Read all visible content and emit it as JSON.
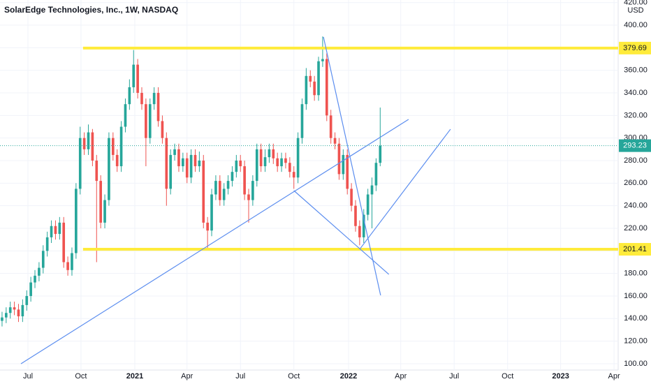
{
  "chart_data": {
    "type": "candlestick",
    "title": "SolarEdge Technologies, Inc., 1W, NASDAQ",
    "currency": "USD",
    "up_color": "#26a69a",
    "down_color": "#ef5350",
    "level_color": "#ffeb3b",
    "trendline_color": "#5b8def",
    "grid": true,
    "xlim": [
      0,
      150.4
    ],
    "xticks": [
      {
        "value": 6.8,
        "label": "Jul"
      },
      {
        "value": 19.7,
        "label": "Oct"
      },
      {
        "value": 32.8,
        "label": "2021"
      },
      {
        "value": 45.5,
        "label": "Apr"
      },
      {
        "value": 58.5,
        "label": "Jul"
      },
      {
        "value": 71.5,
        "label": "Oct"
      },
      {
        "value": 84.8,
        "label": "2022"
      },
      {
        "value": 97.5,
        "label": "Apr"
      },
      {
        "value": 110.5,
        "label": "Jul"
      },
      {
        "value": 123.5,
        "label": "Oct"
      },
      {
        "value": 136.4,
        "label": "2023"
      },
      {
        "value": 149.4,
        "label": "Apr"
      }
    ],
    "ylim": [
      94.4,
      422.3
    ],
    "yticks": [
      {
        "value": 100,
        "label": "100.00"
      },
      {
        "value": 120,
        "label": "120.00"
      },
      {
        "value": 140,
        "label": "140.00"
      },
      {
        "value": 160,
        "label": "160.00"
      },
      {
        "value": 180,
        "label": "180.00"
      },
      {
        "value": 200,
        "label": "200.00"
      },
      {
        "value": 220,
        "label": "220.00"
      },
      {
        "value": 240,
        "label": "240.00"
      },
      {
        "value": 260,
        "label": "260.00"
      },
      {
        "value": 280,
        "label": "280.00"
      },
      {
        "value": 300,
        "label": "300.00"
      },
      {
        "value": 320,
        "label": "320.00"
      },
      {
        "value": 340,
        "label": "340.00"
      },
      {
        "value": 360,
        "label": "360.00"
      },
      {
        "value": 380,
        "label": "380.00"
      },
      {
        "value": 400,
        "label": "400.00"
      },
      {
        "value": 420,
        "label": "420.00"
      }
    ],
    "x": [
      0.5,
      1.5,
      2.5,
      3.5,
      4.5,
      5.5,
      6.5,
      7.5,
      8.5,
      9.5,
      10.5,
      11.5,
      12.5,
      13.5,
      14.5,
      15.5,
      16.5,
      17.5,
      18.5,
      19.5,
      20.5,
      21.5,
      22.5,
      23.5,
      24.5,
      25.5,
      26.5,
      27.5,
      28.5,
      29.5,
      30.5,
      31.5,
      32.5,
      33.5,
      34.5,
      35.5,
      36.5,
      37.5,
      38.5,
      39.5,
      40.5,
      41.5,
      42.5,
      43.5,
      44.5,
      45.5,
      46.5,
      47.5,
      48.5,
      49.5,
      50.5,
      51.5,
      52.5,
      53.5,
      54.5,
      55.5,
      56.5,
      57.5,
      58.5,
      59.5,
      60.5,
      61.5,
      62.5,
      63.5,
      64.5,
      65.5,
      66.5,
      67.5,
      68.5,
      69.5,
      70.5,
      71.5,
      72.5,
      73.5,
      74.5,
      75.5,
      76.5,
      77.5,
      78.5,
      79.5,
      80.5,
      81.5,
      82.5,
      83.5,
      84.5,
      85.5,
      86.5,
      87.5,
      88.5,
      89.5,
      90.5,
      91.5,
      92.5
    ],
    "open": [
      138,
      141,
      145,
      150,
      148,
      142,
      152,
      160,
      172,
      178,
      185,
      200,
      212,
      222,
      215,
      225,
      190,
      183,
      198,
      255,
      300,
      290,
      305,
      280,
      262,
      225,
      245,
      300,
      285,
      275,
      310,
      330,
      345,
      365,
      340,
      330,
      300,
      330,
      340,
      315,
      300,
      255,
      285,
      290,
      275,
      282,
      265,
      285,
      275,
      280,
      225,
      218,
      250,
      262,
      245,
      255,
      262,
      270,
      280,
      275,
      250,
      245,
      262,
      290,
      275,
      283,
      290,
      282,
      275,
      282,
      278,
      270,
      265,
      300,
      330,
      355,
      350,
      338,
      368,
      370,
      320,
      300,
      295,
      268,
      285,
      255,
      240,
      222,
      212,
      232,
      250,
      258,
      278
    ],
    "high": [
      146,
      150,
      155,
      155,
      153,
      157,
      165,
      177,
      183,
      190,
      205,
      217,
      227,
      227,
      230,
      230,
      195,
      203,
      260,
      310,
      305,
      312,
      308,
      285,
      267,
      250,
      305,
      305,
      290,
      315,
      335,
      352,
      378,
      370,
      345,
      335,
      335,
      345,
      345,
      320,
      305,
      290,
      295,
      295,
      287,
      287,
      290,
      290,
      288,
      285,
      230,
      255,
      267,
      267,
      260,
      267,
      275,
      285,
      285,
      280,
      255,
      267,
      295,
      295,
      290,
      295,
      295,
      287,
      287,
      287,
      283,
      275,
      305,
      335,
      362,
      360,
      355,
      372,
      390,
      375,
      325,
      305,
      300,
      290,
      290,
      260,
      245,
      227,
      237,
      255,
      265,
      282,
      327
    ],
    "low": [
      133,
      136,
      140,
      143,
      137,
      137,
      147,
      155,
      167,
      173,
      180,
      195,
      207,
      210,
      210,
      185,
      178,
      178,
      193,
      250,
      285,
      285,
      275,
      190,
      220,
      220,
      240,
      280,
      270,
      270,
      305,
      325,
      340,
      335,
      325,
      275,
      295,
      325,
      310,
      295,
      240,
      250,
      280,
      270,
      270,
      260,
      260,
      270,
      270,
      220,
      201,
      213,
      245,
      240,
      240,
      250,
      257,
      265,
      270,
      245,
      225,
      240,
      257,
      270,
      270,
      278,
      277,
      270,
      270,
      273,
      265,
      255,
      260,
      295,
      325,
      345,
      333,
      333,
      363,
      315,
      295,
      290,
      263,
      263,
      250,
      235,
      217,
      205,
      207,
      227,
      220,
      253,
      275
    ],
    "close": [
      141,
      145,
      150,
      148,
      142,
      152,
      160,
      172,
      178,
      185,
      200,
      212,
      222,
      215,
      225,
      190,
      183,
      198,
      255,
      300,
      290,
      305,
      280,
      262,
      225,
      245,
      300,
      285,
      275,
      310,
      330,
      345,
      365,
      340,
      330,
      300,
      330,
      340,
      315,
      300,
      255,
      285,
      290,
      275,
      282,
      265,
      285,
      275,
      280,
      225,
      218,
      250,
      262,
      245,
      255,
      262,
      270,
      280,
      275,
      250,
      245,
      262,
      290,
      275,
      283,
      290,
      282,
      275,
      282,
      278,
      270,
      265,
      300,
      330,
      355,
      350,
      338,
      368,
      370,
      320,
      300,
      295,
      268,
      285,
      255,
      240,
      222,
      212,
      232,
      250,
      258,
      278,
      293.23
    ],
    "levels": [
      {
        "value": 379.69,
        "from": 20.2
      },
      {
        "value": 201.41,
        "from": 20.2
      }
    ],
    "trendlines": [
      {
        "x": [
          5.1,
          99.4
        ],
        "y": [
          100,
          316.5
        ]
      },
      {
        "x": [
          78.7,
          92.6
        ],
        "y": [
          389.5,
          160.6
        ]
      },
      {
        "x": [
          71.5,
          94.6
        ],
        "y": [
          253.4,
          179.2
        ]
      },
      {
        "x": [
          87.5,
          109.6
        ],
        "y": [
          201.4,
          307.8
        ]
      }
    ]
  }
}
